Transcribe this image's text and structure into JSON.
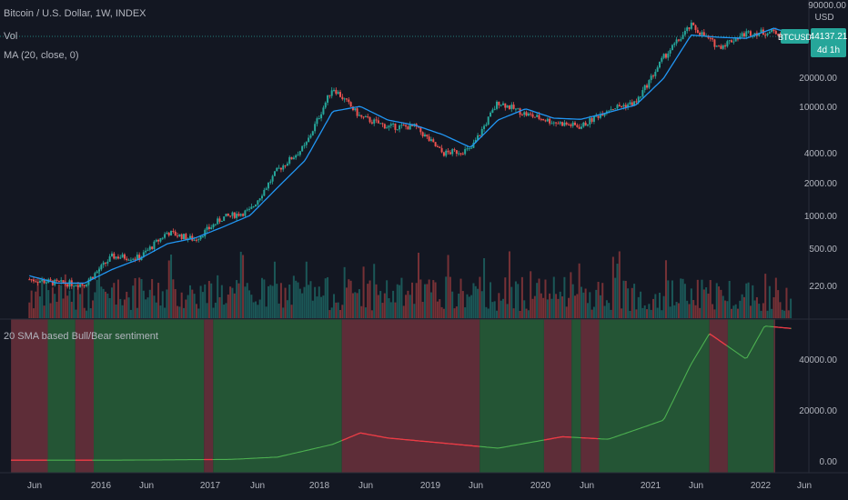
{
  "header": {
    "title": "Bitcoin / U.S. Dollar, 1W, INDEX",
    "vol_label": "Vol",
    "ma_label": "MA (20, close, 0)",
    "indicator_label": "20 SMA based Bull/Bear sentiment"
  },
  "price_scale": {
    "currency": "USD",
    "top_label": "90000.00",
    "ticks": [
      "20000.00",
      "10000.00",
      "4000.00",
      "2000.00",
      "1000.00",
      "500.00",
      "220.00"
    ],
    "symbol_tag": "BTCUSD",
    "last_price": "44137.21",
    "countdown": "4d 1h"
  },
  "indicator_scale": {
    "ticks": [
      "40000.00",
      "20000.00",
      "0.00"
    ]
  },
  "time_axis": {
    "labels": [
      "Jun",
      "2016",
      "Jun",
      "2017",
      "Jun",
      "2018",
      "Jun",
      "2019",
      "Jun",
      "2020",
      "Jun",
      "2021",
      "Jun",
      "2022",
      "Jun"
    ]
  },
  "colors": {
    "background": "#131722",
    "up": "#26a69a",
    "down": "#ef5350",
    "ma": "#2196f3",
    "bull_bg": "#245535",
    "bear_bg": "#5e2d38",
    "sma_bull": "#4caf50",
    "sma_bear": "#f23645",
    "tag": "#26a69a"
  },
  "chart_data": [
    {
      "type": "candlestick",
      "title": "Bitcoin / U.S. Dollar, 1W, INDEX",
      "scale": "log",
      "x": [
        "2015-03",
        "2015-06",
        "2015-09",
        "2015-12",
        "2016-03",
        "2016-06",
        "2016-09",
        "2016-12",
        "2017-03",
        "2017-06",
        "2017-09",
        "2017-12",
        "2018-03",
        "2018-06",
        "2018-09",
        "2018-12",
        "2019-03",
        "2019-06",
        "2019-09",
        "2019-12",
        "2020-03",
        "2020-06",
        "2020-09",
        "2020-12",
        "2021-03",
        "2021-06",
        "2021-09",
        "2021-12",
        "2022-02"
      ],
      "series": [
        {
          "name": "BTCUSD",
          "values": [
            260,
            240,
            235,
            420,
            410,
            700,
            600,
            950,
            1100,
            2600,
            4300,
            15000,
            8000,
            6500,
            6500,
            3700,
            4000,
            11000,
            8500,
            7200,
            6500,
            9500,
            10800,
            28000,
            55000,
            35000,
            47000,
            48000,
            44137
          ]
        },
        {
          "name": "MA (20, close, 0)",
          "values": [
            280,
            240,
            240,
            320,
            400,
            550,
            620,
            780,
            1000,
            1800,
            3200,
            9000,
            10000,
            7500,
            6700,
            5500,
            4200,
            7500,
            9500,
            7800,
            7600,
            8800,
            10300,
            18000,
            45000,
            43000,
            42000,
            52000,
            46000
          ]
        }
      ],
      "ylim": [
        140,
        90000
      ]
    },
    {
      "type": "line",
      "title": "20 SMA based Bull/Bear sentiment",
      "x": [
        "2015-01",
        "2016-01",
        "2017-01",
        "2017-06",
        "2017-12",
        "2018-03",
        "2018-06",
        "2018-12",
        "2019-06",
        "2020-01",
        "2020-06",
        "2020-12",
        "2021-03",
        "2021-05",
        "2021-07",
        "2021-09",
        "2021-11",
        "2022-02"
      ],
      "series": [
        {
          "name": "SMA",
          "values": [
            300,
            300,
            600,
            1500,
            6500,
            11000,
            9000,
            7000,
            5000,
            9500,
            8500,
            16000,
            38000,
            50000,
            45000,
            40000,
            53000,
            52000
          ]
        }
      ],
      "ylim": [
        -2000,
        58000
      ],
      "sentiment_regions": [
        {
          "from": "2015-01",
          "to": "2015-05",
          "state": "bear"
        },
        {
          "from": "2015-05",
          "to": "2015-08",
          "state": "bull"
        },
        {
          "from": "2015-08",
          "to": "2015-10",
          "state": "bear"
        },
        {
          "from": "2015-10",
          "to": "2016-10",
          "state": "bull"
        },
        {
          "from": "2016-10",
          "to": "2016-11",
          "state": "bear"
        },
        {
          "from": "2016-11",
          "to": "2018-01",
          "state": "bull"
        },
        {
          "from": "2018-01",
          "to": "2019-04",
          "state": "bear"
        },
        {
          "from": "2019-04",
          "to": "2019-11",
          "state": "bull"
        },
        {
          "from": "2019-11",
          "to": "2020-02",
          "state": "bear"
        },
        {
          "from": "2020-02",
          "to": "2020-03",
          "state": "bull"
        },
        {
          "from": "2020-03",
          "to": "2020-05",
          "state": "bear"
        },
        {
          "from": "2020-05",
          "to": "2021-05",
          "state": "bull"
        },
        {
          "from": "2021-05",
          "to": "2021-07",
          "state": "bear"
        },
        {
          "from": "2021-07",
          "to": "2021-12",
          "state": "bull"
        },
        {
          "from": "2021-12",
          "to": "2022-02",
          "state": "bear"
        }
      ]
    }
  ]
}
